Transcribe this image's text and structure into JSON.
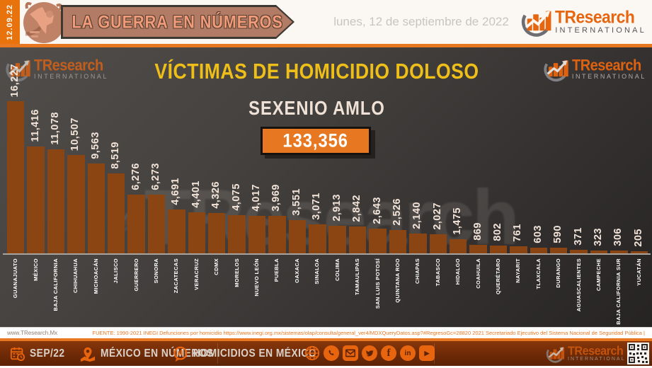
{
  "brand": {
    "name": "TResearch",
    "sub": "INTERNATIONAL"
  },
  "header": {
    "edition_date": "12.09.22",
    "banner_title": "LA GUERRA EN NÚMEROS",
    "long_date": "lunes, 12 de septiembre de 2022"
  },
  "chart_data": {
    "type": "bar",
    "title": "VÍCTIMAS DE HOMICIDIO DOLOSO",
    "subtitle": "SEXENIO AMLO",
    "total_label": "133,356",
    "categories": [
      "GUANAJUATO",
      "MÉXICO",
      "BAJA CALIFORNIA",
      "CHIHUAHUA",
      "MICHOACÁN",
      "JALISCO",
      "GUERRERO",
      "SONORA",
      "ZACATECAS",
      "VERACRUZ",
      "CDMX",
      "MORELOS",
      "NUEVO LEÓN",
      "PUEBLA",
      "OAXACA",
      "SINALOA",
      "COLIMA",
      "TAMAULIPAS",
      "SAN LUIS POTOSÍ",
      "QUINTANA ROO",
      "CHIAPAS",
      "TABASCO",
      "HIDALGO",
      "COAHUILA",
      "QUERÉTARO",
      "NAYARIT",
      "TLAXCALA",
      "DURANGO",
      "AGUASCALIENTES",
      "CAMPECHE",
      "BAJA CALIFORNIA SUR",
      "YUCATÁN"
    ],
    "values": [
      16227,
      11416,
      11078,
      10507,
      9563,
      8519,
      6276,
      6273,
      4691,
      4401,
      4326,
      4075,
      4017,
      3969,
      3551,
      3071,
      2913,
      2842,
      2643,
      2526,
      2140,
      2027,
      1475,
      869,
      802,
      761,
      603,
      590,
      371,
      323,
      306,
      205
    ],
    "value_labels": [
      "16,227",
      "11,416",
      "11,078",
      "10,507",
      "9,563",
      "8,519",
      "6,276",
      "6,273",
      "4,691",
      "4,401",
      "4,326",
      "4,075",
      "4,017",
      "3,969",
      "3,551",
      "3,071",
      "2,913",
      "2,842",
      "2,643",
      "2,526",
      "2,140",
      "2,027",
      "1,475",
      "869",
      "802",
      "761",
      "603",
      "590",
      "371",
      "323",
      "306",
      "205"
    ],
    "ylim": [
      0,
      16227
    ],
    "bar_color": "#8a4513",
    "legend": "none",
    "grid": "off"
  },
  "source_bar": {
    "website": "www.TResearch.Mx",
    "source_text": "FUENTE: 1990-2021 INEGI Defunciones por homicidio https://www.inegi.org.mx/sistemas/olap/consulta/general_ver4/MDXQueryDatos.asp?#RegresoGc=28820   2021 Secretariado Ejecutivo del Sistema Nacional de Seguridad Pública |"
  },
  "footer": {
    "period": "SEP/22",
    "series_name": "MÉXICO EN NÚMEROS",
    "topic": "HOMICIDIOS EN MÉXICO",
    "social_icons": [
      "globe",
      "whatsapp",
      "email",
      "twitter",
      "facebook",
      "linkedin",
      "youtube"
    ],
    "facebook_glyph": "f",
    "linkedin_glyph": "in",
    "youtube_glyph": "▶"
  },
  "colors": {
    "accent_orange": "#e87722",
    "logo_orange": "#e8650f",
    "bar_brown": "#8a4513",
    "title_yellow": "#efbf19",
    "cream": "#f0e1d7",
    "banner_mauve": "#b17b65",
    "banner_text": "#f29b7a",
    "footer_rust": "#6e2a07",
    "chart_bg_dark": "#343130"
  }
}
